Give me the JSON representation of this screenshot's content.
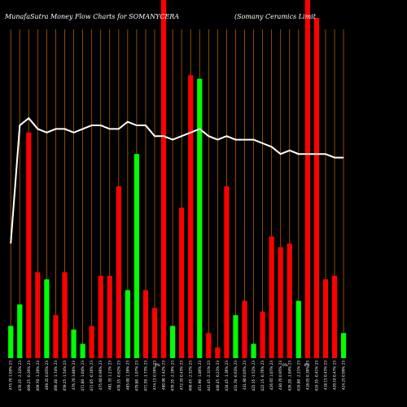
{
  "chart_data": {
    "type": "bar",
    "title_left": "MunafaSutra  Money Flow  Charts for SOMANYCERA",
    "title_right": "(Somany Ceramics Limit",
    "colors": {
      "up": "#00ff00",
      "down": "#ff0000",
      "grid": "#b35f00",
      "line": "#ffffff",
      "background": "#000000"
    },
    "grid": true,
    "categories": [
      "475.70 1.09% 23",
      "470.35 -2.33% 23",
      "469.25 -0.20% 23",
      "469.70 -1.29% 23",
      "469.35 0.05% 23",
      "466.40 -1.74% 23",
      "459.25 -1.54% 23",
      "476.70 3.80% 23",
      "471.80 -1.04% 23",
      "471.05 -0.16% 23",
      "475.60 0.96% 23",
      "481.35 1.21% 23",
      "478.35 -0.62% 23",
      "485.00 1.39% 23",
      "479.80 -1.07% 23",
      "471.50 -1.73% 23",
      "474.15 0.56% 23",
      "480.90 1.42% 23",
      "470.35 -2.19% 23",
      "472.35 0.43% 23",
      "460.45 -2.52% 23",
      "451.90 -1.86% 23",
      "441.45 -2.31% 23",
      "440.45 -0.23% 23",
      "434.45 -1.36% 23",
      "431.70 -0.63% 23",
      "431.90 0.05% 23",
      "425.35 -1.52% 23",
      "422.15 -0.76% 23",
      "426.65 1.07% 23",
      "430.70 0.95% 23",
      "426.20 -1.04% 23",
      "416.80 -2.21% 23",
      "418.05 0.30% 23",
      "416.35 -0.41% 23",
      "418.15 0.43% 23",
      "420.10 0.47% 23",
      "424.25 0.99% 23"
    ],
    "x_center_label": "0%",
    "x_right_label": "0%               0%",
    "flow_values": [
      9,
      15,
      63,
      24,
      22,
      12,
      24,
      8,
      4,
      9,
      23,
      23,
      48,
      19,
      57,
      19,
      14,
      100,
      9,
      42,
      79,
      78,
      7,
      3,
      48,
      12,
      16,
      4,
      13,
      34,
      31,
      32,
      16,
      100,
      95,
      22,
      23,
      7
    ],
    "flow_direction": [
      "up",
      "up",
      "down",
      "down",
      "up",
      "down",
      "down",
      "up",
      "up",
      "down",
      "down",
      "down",
      "down",
      "up",
      "up",
      "down",
      "down",
      "down",
      "up",
      "down",
      "down",
      "up",
      "down",
      "down",
      "down",
      "up",
      "down",
      "up",
      "down",
      "down",
      "down",
      "down",
      "up",
      "down",
      "down",
      "down",
      "down",
      "up"
    ],
    "price_line": [
      32,
      65,
      67,
      64,
      63,
      64,
      64,
      63,
      64,
      65,
      65,
      64,
      64,
      66,
      65,
      65,
      62,
      62,
      61,
      62,
      63,
      64,
      62,
      61,
      62,
      61,
      61,
      61,
      60,
      59,
      57,
      58,
      57,
      57,
      57,
      57,
      56,
      56
    ],
    "ylim": [
      0,
      100
    ]
  }
}
